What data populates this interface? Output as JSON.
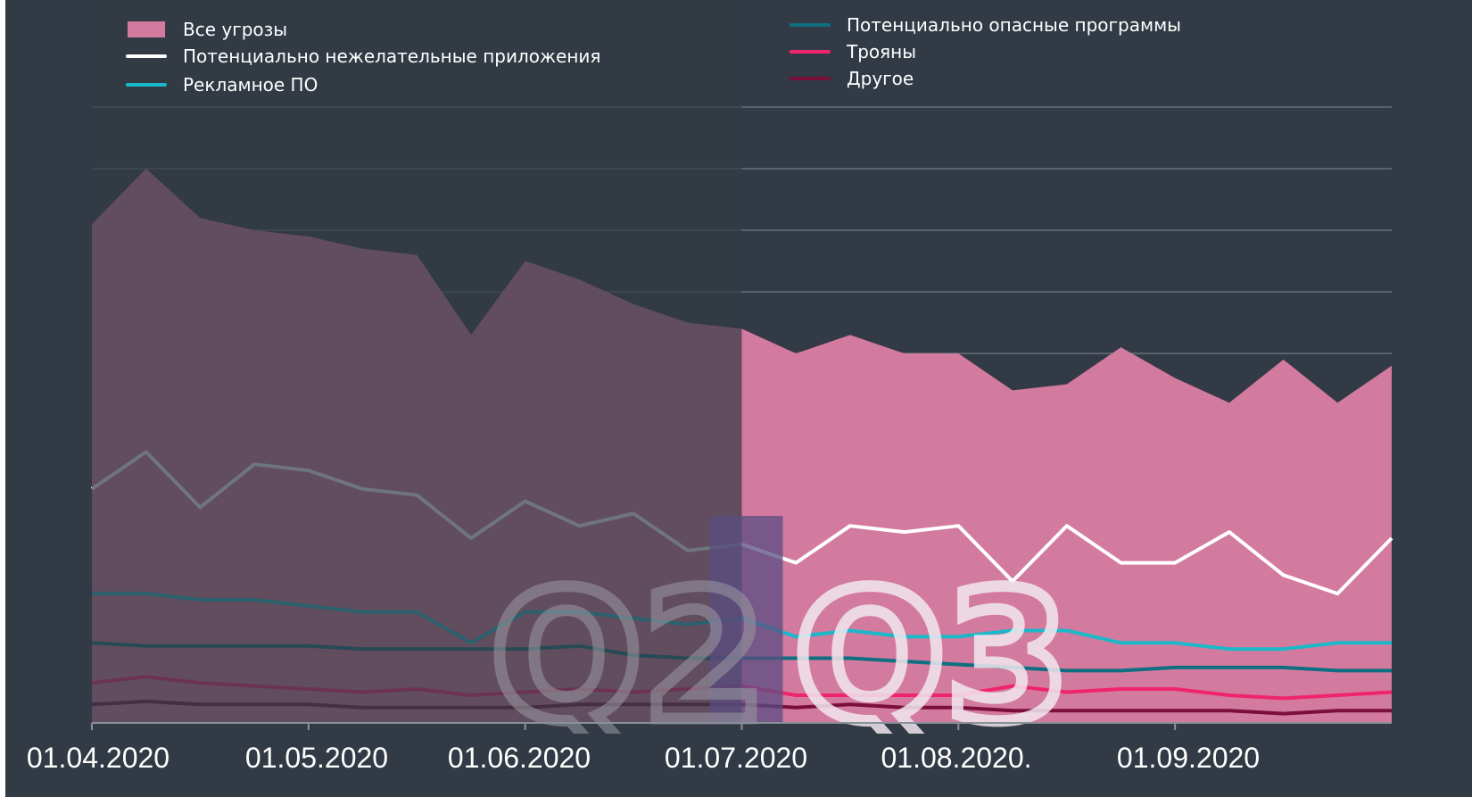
{
  "chart_data": {
    "type": "area",
    "x": [
      "01.04",
      "08.04",
      "15.04",
      "22.04",
      "01.05",
      "08.05",
      "15.05",
      "22.05",
      "01.06",
      "08.06",
      "15.06",
      "22.06",
      "01.07",
      "08.07",
      "15.07",
      "22.07",
      "01.08",
      "08.08",
      "15.08",
      "22.08",
      "01.09",
      "08.09",
      "15.09",
      "22.09",
      "30.09"
    ],
    "x_tick_labels": [
      "01.04.2020",
      "01.05.2020",
      "01.06.2020",
      "01.07.2020",
      "01.08.2020.",
      "01.09.2020"
    ],
    "x_tick_index": [
      0,
      4,
      8,
      12,
      16,
      20
    ],
    "ylim": [
      0,
      10
    ],
    "y_gridlines": 10,
    "grid": true,
    "legend_position": "top",
    "series": [
      {
        "name": "Все угрозы",
        "style": "area",
        "color": "#d37a9f",
        "values": [
          8.1,
          9.0,
          8.2,
          8.0,
          7.9,
          7.7,
          7.6,
          6.3,
          7.5,
          7.2,
          6.8,
          6.5,
          6.4,
          6.0,
          6.3,
          6.0,
          6.0,
          5.4,
          5.5,
          6.1,
          5.6,
          5.2,
          5.9,
          5.2,
          5.8
        ]
      },
      {
        "name": "Потенциально нежелательные приложения",
        "style": "line",
        "color": "#ffffff",
        "values": [
          3.8,
          4.4,
          3.5,
          4.2,
          4.1,
          3.8,
          3.7,
          3.0,
          3.6,
          3.2,
          3.4,
          2.8,
          2.9,
          2.6,
          3.2,
          3.1,
          3.2,
          2.3,
          3.2,
          2.6,
          2.6,
          3.1,
          2.4,
          2.1,
          3.0
        ]
      },
      {
        "name": "Рекламное ПО",
        "style": "line",
        "color": "#1bb8c9",
        "values": [
          2.1,
          2.1,
          2.0,
          2.0,
          1.9,
          1.8,
          1.8,
          1.3,
          1.8,
          1.8,
          1.7,
          1.6,
          1.7,
          1.4,
          1.5,
          1.4,
          1.4,
          1.5,
          1.5,
          1.3,
          1.3,
          1.2,
          1.2,
          1.3,
          1.3
        ]
      },
      {
        "name": "Потенциально опасные программы",
        "style": "line",
        "color": "#0e6f80",
        "values": [
          1.3,
          1.25,
          1.25,
          1.25,
          1.25,
          1.2,
          1.2,
          1.2,
          1.2,
          1.25,
          1.1,
          1.05,
          1.05,
          1.05,
          1.05,
          1.0,
          0.95,
          0.9,
          0.85,
          0.85,
          0.9,
          0.9,
          0.9,
          0.85,
          0.85
        ]
      },
      {
        "name": "Трояны",
        "style": "line",
        "color": "#f0246c",
        "values": [
          0.65,
          0.75,
          0.65,
          0.6,
          0.55,
          0.5,
          0.55,
          0.45,
          0.5,
          0.55,
          0.5,
          0.55,
          0.6,
          0.45,
          0.45,
          0.45,
          0.45,
          0.6,
          0.5,
          0.55,
          0.55,
          0.45,
          0.4,
          0.45,
          0.5
        ]
      },
      {
        "name": "Другое",
        "style": "line",
        "color": "#7a0f3c",
        "values": [
          0.3,
          0.35,
          0.3,
          0.3,
          0.3,
          0.25,
          0.25,
          0.25,
          0.25,
          0.3,
          0.3,
          0.3,
          0.3,
          0.25,
          0.3,
          0.25,
          0.25,
          0.2,
          0.2,
          0.2,
          0.2,
          0.2,
          0.15,
          0.2,
          0.2
        ]
      }
    ],
    "annotations": [
      {
        "text": "Q2",
        "color": "#9a9aa3"
      },
      {
        "text": "Q3",
        "color": "#f1e8ee"
      }
    ],
    "shaded_region": {
      "from_index": 0,
      "to_index": 12,
      "color": "#323a45",
      "opacity": 0.7
    }
  }
}
